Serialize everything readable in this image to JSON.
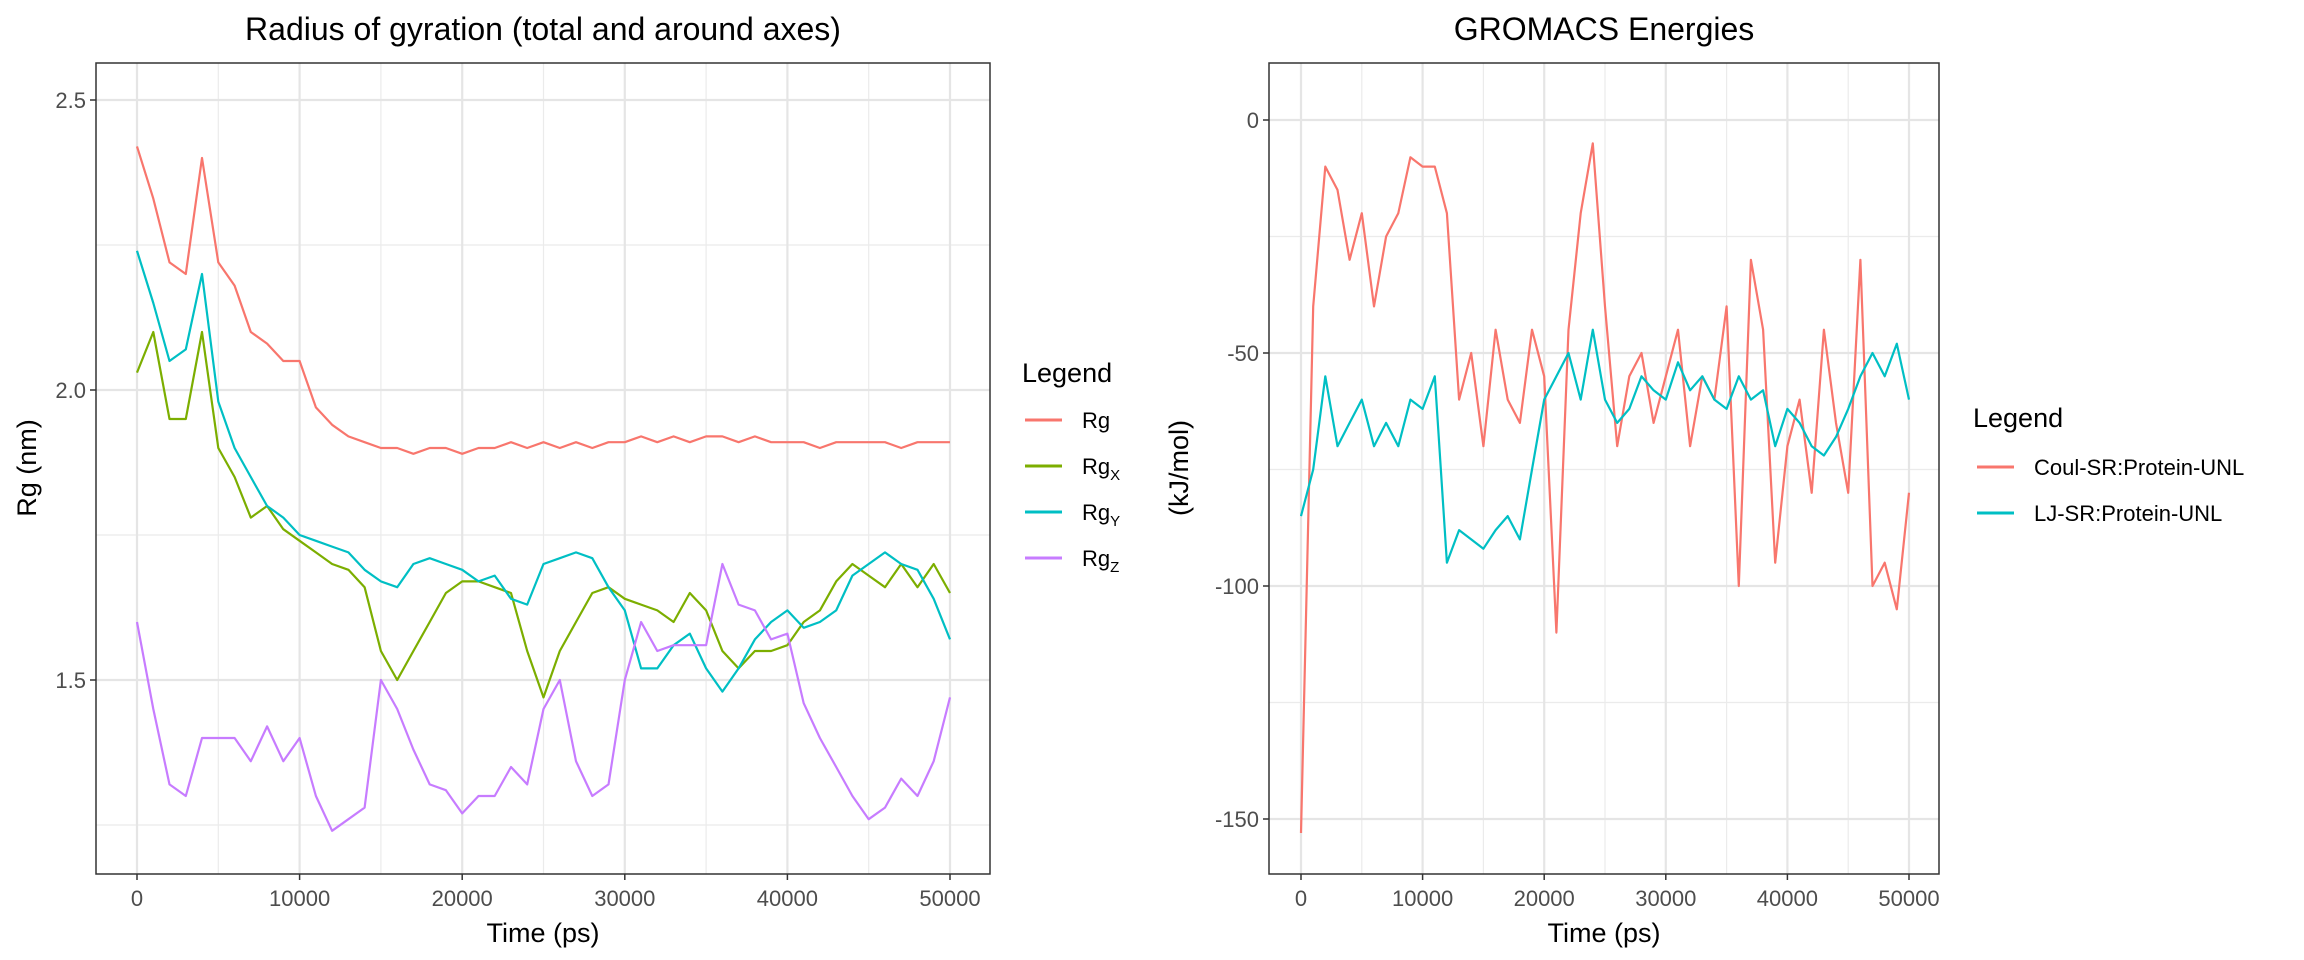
{
  "chart_data": [
    {
      "type": "line",
      "title": "Radius of gyration (total and around axes)",
      "xlabel": "Time (ps)",
      "ylabel": "Rg (nm)",
      "xlim": [
        0,
        50000
      ],
      "ylim": [
        1.16,
        2.57
      ],
      "xticks": [
        "0",
        "10000",
        "20000",
        "30000",
        "40000",
        "50000"
      ],
      "yticks": [
        "1.5",
        "2.0",
        "2.5"
      ],
      "grid": true,
      "legend": {
        "title": "Legend",
        "placement": "right"
      },
      "x": [
        0,
        1000,
        2000,
        3000,
        4000,
        5000,
        6000,
        7000,
        8000,
        9000,
        10000,
        11000,
        12000,
        13000,
        14000,
        15000,
        16000,
        17000,
        18000,
        19000,
        20000,
        21000,
        22000,
        23000,
        24000,
        25000,
        26000,
        27000,
        28000,
        29000,
        30000,
        31000,
        32000,
        33000,
        34000,
        35000,
        36000,
        37000,
        38000,
        39000,
        40000,
        41000,
        42000,
        43000,
        44000,
        45000,
        46000,
        47000,
        48000,
        49000,
        50000
      ],
      "series": [
        {
          "name": "Rg",
          "base": "Rg",
          "sub": "",
          "color": "#F8766D",
          "values": [
            2.42,
            2.33,
            2.22,
            2.2,
            2.4,
            2.22,
            2.18,
            2.1,
            2.08,
            2.05,
            2.05,
            1.97,
            1.94,
            1.92,
            1.91,
            1.9,
            1.9,
            1.89,
            1.9,
            1.9,
            1.89,
            1.9,
            1.9,
            1.91,
            1.9,
            1.91,
            1.9,
            1.91,
            1.9,
            1.91,
            1.91,
            1.92,
            1.91,
            1.92,
            1.91,
            1.92,
            1.92,
            1.91,
            1.92,
            1.91,
            1.91,
            1.91,
            1.9,
            1.91,
            1.91,
            1.91,
            1.91,
            1.9,
            1.91,
            1.91,
            1.91
          ]
        },
        {
          "name": "RgX",
          "base": "Rg",
          "sub": "X",
          "color": "#7CAE00",
          "values": [
            2.03,
            2.1,
            1.95,
            1.95,
            2.1,
            1.9,
            1.85,
            1.78,
            1.8,
            1.76,
            1.74,
            1.72,
            1.7,
            1.69,
            1.66,
            1.55,
            1.5,
            1.55,
            1.6,
            1.65,
            1.67,
            1.67,
            1.66,
            1.65,
            1.55,
            1.47,
            1.55,
            1.6,
            1.65,
            1.66,
            1.64,
            1.63,
            1.62,
            1.6,
            1.65,
            1.62,
            1.55,
            1.52,
            1.55,
            1.55,
            1.56,
            1.6,
            1.62,
            1.67,
            1.7,
            1.68,
            1.66,
            1.7,
            1.66,
            1.7,
            1.65
          ]
        },
        {
          "name": "RgY",
          "base": "Rg",
          "sub": "Y",
          "color": "#00BFC4",
          "values": [
            2.24,
            2.15,
            2.05,
            2.07,
            2.2,
            1.98,
            1.9,
            1.85,
            1.8,
            1.78,
            1.75,
            1.74,
            1.73,
            1.72,
            1.69,
            1.67,
            1.66,
            1.7,
            1.71,
            1.7,
            1.69,
            1.67,
            1.68,
            1.64,
            1.63,
            1.7,
            1.71,
            1.72,
            1.71,
            1.66,
            1.62,
            1.52,
            1.52,
            1.56,
            1.58,
            1.52,
            1.48,
            1.52,
            1.57,
            1.6,
            1.62,
            1.59,
            1.6,
            1.62,
            1.68,
            1.7,
            1.72,
            1.7,
            1.69,
            1.64,
            1.57
          ]
        },
        {
          "name": "RgZ",
          "base": "Rg",
          "sub": "Z",
          "color": "#C77CFF",
          "values": [
            1.6,
            1.45,
            1.32,
            1.3,
            1.4,
            1.4,
            1.4,
            1.36,
            1.42,
            1.36,
            1.4,
            1.3,
            1.24,
            1.26,
            1.28,
            1.5,
            1.45,
            1.38,
            1.32,
            1.31,
            1.27,
            1.3,
            1.3,
            1.35,
            1.32,
            1.45,
            1.5,
            1.36,
            1.3,
            1.32,
            1.5,
            1.6,
            1.55,
            1.56,
            1.56,
            1.56,
            1.7,
            1.63,
            1.62,
            1.57,
            1.58,
            1.46,
            1.4,
            1.35,
            1.3,
            1.26,
            1.28,
            1.33,
            1.3,
            1.36,
            1.47
          ]
        }
      ]
    },
    {
      "type": "line",
      "title": "GROMACS Energies",
      "xlabel": "Time (ps)",
      "ylabel": "(kJ/mol)",
      "xlim": [
        0,
        50000
      ],
      "ylim": [
        -161.7,
        12.2
      ],
      "xticks": [
        "0",
        "10000",
        "20000",
        "30000",
        "40000",
        "50000"
      ],
      "yticks": [
        "0",
        "-50",
        "-100",
        "-150"
      ],
      "grid": true,
      "legend": {
        "title": "Legend",
        "placement": "right"
      },
      "x": [
        0,
        1000,
        2000,
        3000,
        4000,
        5000,
        6000,
        7000,
        8000,
        9000,
        10000,
        11000,
        12000,
        13000,
        14000,
        15000,
        16000,
        17000,
        18000,
        19000,
        20000,
        21000,
        22000,
        23000,
        24000,
        25000,
        26000,
        27000,
        28000,
        29000,
        30000,
        31000,
        32000,
        33000,
        34000,
        35000,
        36000,
        37000,
        38000,
        39000,
        40000,
        41000,
        42000,
        43000,
        44000,
        45000,
        46000,
        47000,
        48000,
        49000,
        50000
      ],
      "series": [
        {
          "name": "Coul-SR:Protein-UNL",
          "color": "#F8766D",
          "values": [
            -153,
            -40,
            -10,
            -15,
            -30,
            -20,
            -40,
            -25,
            -20,
            -8,
            -10,
            -10,
            -20,
            -60,
            -50,
            -70,
            -45,
            -60,
            -65,
            -45,
            -55,
            -110,
            -45,
            -20,
            -5,
            -40,
            -70,
            -55,
            -50,
            -65,
            -55,
            -45,
            -70,
            -55,
            -60,
            -40,
            -100,
            -30,
            -45,
            -95,
            -70,
            -60,
            -80,
            -45,
            -65,
            -80,
            -30,
            -100,
            -95,
            -105,
            -80
          ]
        },
        {
          "name": "LJ-SR:Protein-UNL",
          "color": "#00BFC4",
          "values": [
            -85,
            -75,
            -55,
            -70,
            -65,
            -60,
            -70,
            -65,
            -70,
            -60,
            -62,
            -55,
            -95,
            -88,
            -90,
            -92,
            -88,
            -85,
            -90,
            -75,
            -60,
            -55,
            -50,
            -60,
            -45,
            -60,
            -65,
            -62,
            -55,
            -58,
            -60,
            -52,
            -58,
            -55,
            -60,
            -62,
            -55,
            -60,
            -58,
            -70,
            -62,
            -65,
            -70,
            -72,
            -68,
            -62,
            -55,
            -50,
            -55,
            -48,
            -60
          ]
        }
      ]
    }
  ]
}
